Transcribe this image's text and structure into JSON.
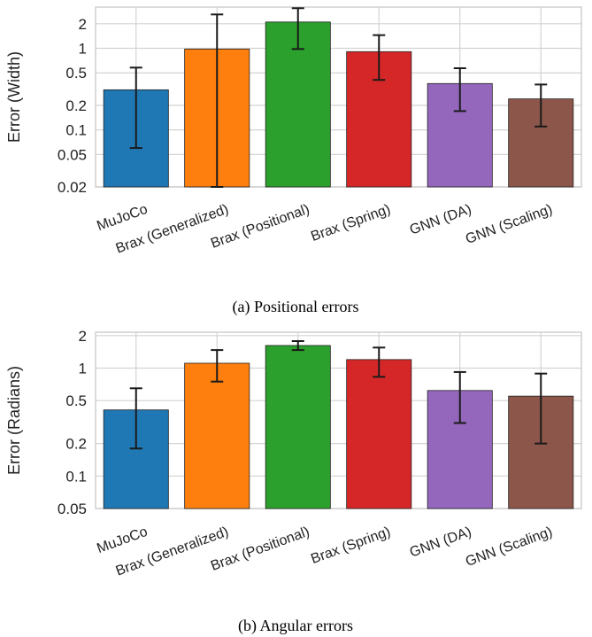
{
  "figure": {
    "captions": [
      "(a) Positional errors",
      "(b) Angular errors"
    ]
  },
  "chart_data": [
    {
      "type": "bar",
      "caption": "(a) Positional errors",
      "title": "",
      "xlabel": "",
      "ylabel": "Error (Width)",
      "yscale": "log",
      "ylim": [
        0.02,
        3.2
      ],
      "yticks": [
        0.02,
        0.05,
        0.1,
        0.2,
        0.5,
        1,
        2
      ],
      "ytick_labels": [
        "0.02",
        "0.05",
        "0.1",
        "0.2",
        "0.5",
        "1",
        "2"
      ],
      "grid": true,
      "categories": [
        "MuJoCo",
        "Brax (Generalized)",
        "Brax (Positional)",
        "Brax (Spring)",
        "GNN (DA)",
        "GNN (Scaling)"
      ],
      "values": [
        0.31,
        0.98,
        2.1,
        0.91,
        0.37,
        0.24
      ],
      "error_low": [
        0.06,
        0.02,
        0.98,
        0.41,
        0.17,
        0.11
      ],
      "error_high": [
        0.58,
        2.6,
        3.1,
        1.45,
        0.57,
        0.36
      ],
      "colors": [
        "#1f77b4",
        "#ff7f0e",
        "#2ca02c",
        "#d62728",
        "#9467bd",
        "#8c564b"
      ]
    },
    {
      "type": "bar",
      "caption": "(b) Angular errors",
      "title": "",
      "xlabel": "",
      "ylabel": "Error (Radians)",
      "yscale": "log",
      "ylim": [
        0.05,
        2.15
      ],
      "yticks": [
        0.05,
        0.1,
        0.2,
        0.5,
        1,
        2
      ],
      "ytick_labels": [
        "0.05",
        "0.1",
        "0.2",
        "0.5",
        "1",
        "2"
      ],
      "grid": true,
      "categories": [
        "MuJoCo",
        "Brax (Generalized)",
        "Brax (Positional)",
        "Brax (Spring)",
        "GNN (DA)",
        "GNN (Scaling)"
      ],
      "values": [
        0.41,
        1.11,
        1.62,
        1.2,
        0.62,
        0.55
      ],
      "error_low": [
        0.18,
        0.75,
        1.47,
        0.83,
        0.31,
        0.2
      ],
      "error_high": [
        0.65,
        1.47,
        1.78,
        1.55,
        0.92,
        0.89
      ],
      "colors": [
        "#1f77b4",
        "#ff7f0e",
        "#2ca02c",
        "#d62728",
        "#9467bd",
        "#8c564b"
      ]
    }
  ]
}
